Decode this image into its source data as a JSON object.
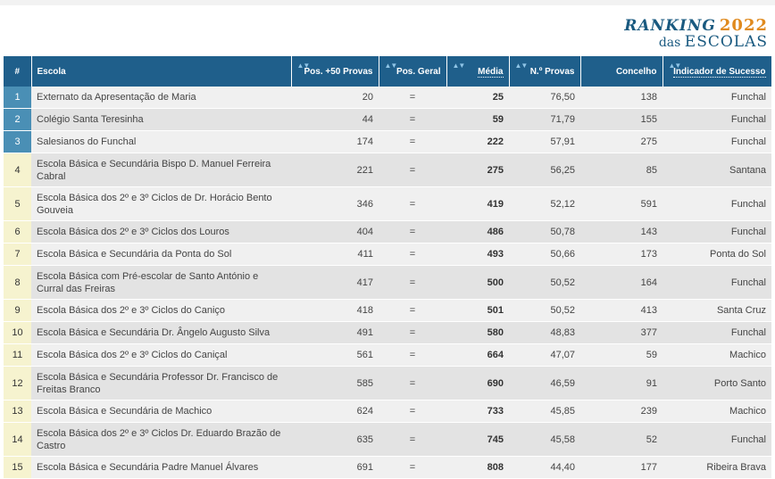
{
  "brand": {
    "line1": "RANKING",
    "year": "2022",
    "line2_small": "das",
    "line2_big": "ESCOLAS"
  },
  "headers": {
    "rank": "#",
    "school": "Escola",
    "pos50": "Pos. +50 Provas",
    "posgeral": "Pos. Geral",
    "media": "Média",
    "nprovas": "N.º Provas",
    "concelho": "Concelho",
    "indicador": "Indicador de Sucesso",
    "sort_icon": "▲▼"
  },
  "rows": [
    {
      "rank": "1",
      "school": "Externato da Apresentação de Maria",
      "pos50": "20",
      "eq": "=",
      "geral": "25",
      "media": "76,50",
      "nprovas": "138",
      "concelho": "Funchal",
      "ind": "--"
    },
    {
      "rank": "2",
      "school": "Colégio Santa Teresinha",
      "pos50": "44",
      "eq": "=",
      "geral": "59",
      "media": "71,79",
      "nprovas": "155",
      "concelho": "Funchal",
      "ind": "--"
    },
    {
      "rank": "3",
      "school": "Salesianos do Funchal",
      "pos50": "174",
      "eq": "=",
      "geral": "222",
      "media": "57,91",
      "nprovas": "275",
      "concelho": "Funchal",
      "ind": "--"
    },
    {
      "rank": "4",
      "school": "Escola Básica e Secundária Bispo D. Manuel Ferreira Cabral",
      "pos50": "221",
      "eq": "=",
      "geral": "275",
      "media": "56,25",
      "nprovas": "85",
      "concelho": "Santana",
      "ind": "--"
    },
    {
      "rank": "5",
      "school": "Escola Básica dos 2º e 3º Ciclos de Dr. Horácio Bento Gouveia",
      "pos50": "346",
      "eq": "=",
      "geral": "419",
      "media": "52,12",
      "nprovas": "591",
      "concelho": "Funchal",
      "ind": "--"
    },
    {
      "rank": "6",
      "school": "Escola Básica dos 2º e 3º Ciclos dos Louros",
      "pos50": "404",
      "eq": "=",
      "geral": "486",
      "media": "50,78",
      "nprovas": "143",
      "concelho": "Funchal",
      "ind": "--"
    },
    {
      "rank": "7",
      "school": "Escola Básica e Secundária da Ponta do Sol",
      "pos50": "411",
      "eq": "=",
      "geral": "493",
      "media": "50,66",
      "nprovas": "173",
      "concelho": "Ponta do Sol",
      "ind": "--"
    },
    {
      "rank": "8",
      "school": "Escola Básica com Pré-escolar de Santo António e Curral das Freiras",
      "pos50": "417",
      "eq": "=",
      "geral": "500",
      "media": "50,52",
      "nprovas": "164",
      "concelho": "Funchal",
      "ind": "--"
    },
    {
      "rank": "9",
      "school": "Escola Básica dos 2º e 3º Ciclos do Caniço",
      "pos50": "418",
      "eq": "=",
      "geral": "501",
      "media": "50,52",
      "nprovas": "413",
      "concelho": "Santa Cruz",
      "ind": "--"
    },
    {
      "rank": "10",
      "school": "Escola Básica e Secundária Dr. Ângelo Augusto Silva",
      "pos50": "491",
      "eq": "=",
      "geral": "580",
      "media": "48,83",
      "nprovas": "377",
      "concelho": "Funchal",
      "ind": "--"
    },
    {
      "rank": "11",
      "school": "Escola Básica dos 2º e 3º Ciclos do Caniçal",
      "pos50": "561",
      "eq": "=",
      "geral": "664",
      "media": "47,07",
      "nprovas": "59",
      "concelho": "Machico",
      "ind": "--"
    },
    {
      "rank": "12",
      "school": "Escola Básica e Secundária Professor Dr. Francisco de Freitas Branco",
      "pos50": "585",
      "eq": "=",
      "geral": "690",
      "media": "46,59",
      "nprovas": "91",
      "concelho": "Porto Santo",
      "ind": "--"
    },
    {
      "rank": "13",
      "school": "Escola Básica e Secundária de Machico",
      "pos50": "624",
      "eq": "=",
      "geral": "733",
      "media": "45,85",
      "nprovas": "239",
      "concelho": "Machico",
      "ind": "--"
    },
    {
      "rank": "14",
      "school": "Escola Básica dos 2º e 3º Ciclos Dr. Eduardo Brazão de Castro",
      "pos50": "635",
      "eq": "=",
      "geral": "745",
      "media": "45,58",
      "nprovas": "52",
      "concelho": "Funchal",
      "ind": "--"
    },
    {
      "rank": "15",
      "school": "Escola Básica e Secundária Padre Manuel Álvares",
      "pos50": "691",
      "eq": "=",
      "geral": "808",
      "media": "44,40",
      "nprovas": "177",
      "concelho": "Ribeira Brava",
      "ind": "--"
    }
  ],
  "tall_rows": [
    3,
    4,
    7,
    11,
    13
  ],
  "colors": {
    "header": "#1f5f8b",
    "top_rank": "#4a8fb5",
    "other_rank": "#f6f3cf",
    "brand_blue": "#1a5a80",
    "brand_orange": "#e08a1e"
  }
}
